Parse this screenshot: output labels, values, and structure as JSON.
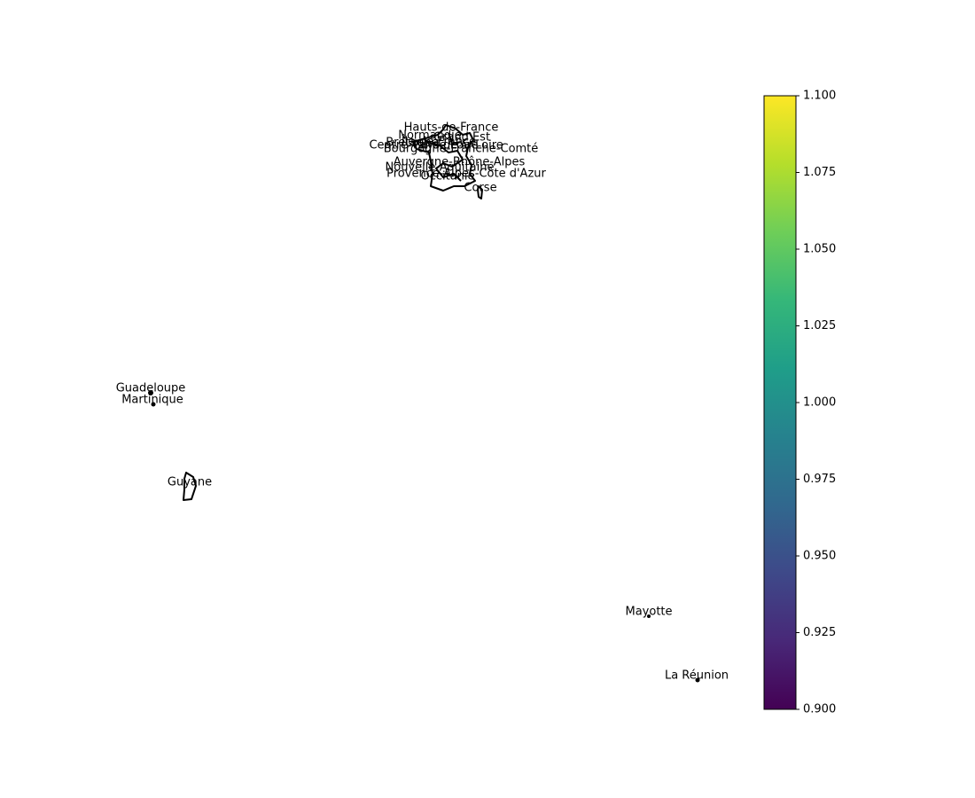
{
  "map": {
    "labels": [
      "Hauts-de-France",
      "Normandie",
      "Grand Est",
      "Île-de-France",
      "Bretagne",
      "Pays de la Loire",
      "Centre-Val de Loire",
      "Bourgogne-Franche-Comté",
      "Auvergne-Rhône-Alpes",
      "Nouvelle-Aquitaine",
      "Occitanie",
      "Provence-Alpes-Côte d'Azur",
      "Corse",
      "Guadeloupe",
      "Martinique",
      "Guyane",
      "Mayotte",
      "La Réunion"
    ],
    "colorbar": {
      "colormap": "viridis",
      "lim": [
        0.9,
        1.1
      ],
      "ticks": [
        {
          "value": 0.9,
          "label": "0.900"
        },
        {
          "value": 0.925,
          "label": "0.925"
        },
        {
          "value": 0.95,
          "label": "0.950"
        },
        {
          "value": 0.975,
          "label": "0.975"
        },
        {
          "value": 1.0,
          "label": "1.000"
        },
        {
          "value": 1.025,
          "label": "1.025"
        },
        {
          "value": 1.05,
          "label": "1.050"
        },
        {
          "value": 1.075,
          "label": "1.075"
        },
        {
          "value": 1.1,
          "label": "1.100"
        }
      ]
    }
  }
}
